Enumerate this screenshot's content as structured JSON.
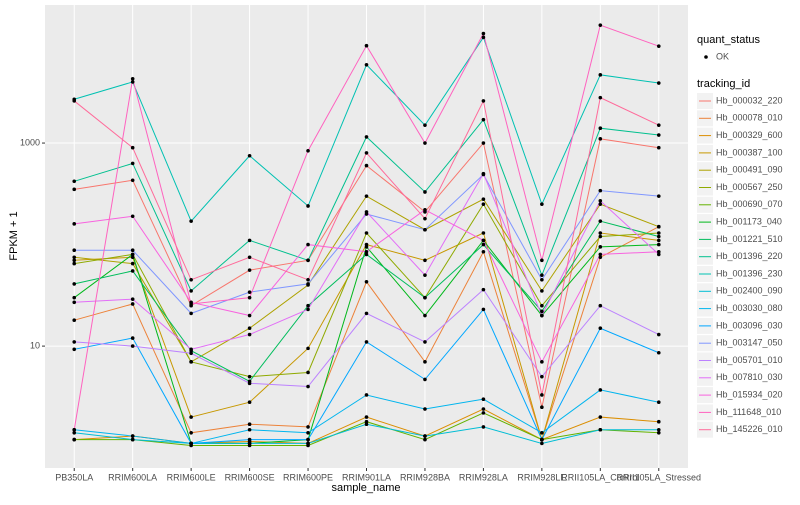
{
  "chart_data": {
    "type": "line",
    "x_label": "sample_name",
    "y_label": "FPKM + 1",
    "categories": [
      "PB350LA",
      "RRIM600LA",
      "RRIM600LE",
      "RRIM600SE",
      "RRIM600PE",
      "RRIM901LA",
      "RRIM928BA",
      "RRIM928LA",
      "RRIM928LE",
      "RRII105LA_Control",
      "RRII105LA_Stressed"
    ],
    "log_y": true,
    "grid": true,
    "ylim": [
      0.63,
      22900
    ],
    "yticks": [
      10,
      1000
    ],
    "status_legend": {
      "title": "quant_status",
      "labels": [
        "OK"
      ]
    },
    "legend_title": "tracking_id",
    "series": [
      {
        "name": "Hb_000032_220",
        "color": "#F8766D",
        "values": [
          350,
          430,
          25,
          56,
          70,
          600,
          210,
          1000,
          2.5,
          1100,
          900
        ]
      },
      {
        "name": "Hb_000078_010",
        "color": "#EC8239",
        "values": [
          18,
          26,
          1.4,
          1.7,
          1.6,
          43,
          7,
          85,
          1.2,
          75,
          150
        ]
      },
      {
        "name": "Hb_000329_600",
        "color": "#DB8E00",
        "values": [
          1.2,
          1.3,
          1.1,
          1.15,
          1.1,
          2.0,
          1.3,
          2.4,
          1.2,
          2.0,
          1.8
        ]
      },
      {
        "name": "Hb_000387_100",
        "color": "#C79800",
        "values": [
          70,
          75,
          2.0,
          2.8,
          9.5,
          100,
          70,
          130,
          1.2,
          130,
          110
        ]
      },
      {
        "name": "Hb_000491_090",
        "color": "#AEA200",
        "values": [
          75,
          65,
          7,
          15,
          40,
          300,
          140,
          280,
          35,
          250,
          150
        ]
      },
      {
        "name": "Hb_000567_250",
        "color": "#8FAA00",
        "values": [
          65,
          80,
          7,
          5,
          5.5,
          130,
          30,
          250,
          25,
          120,
          130
        ]
      },
      {
        "name": "Hb_000690_070",
        "color": "#64B200",
        "values": [
          1.2,
          1.2,
          1.05,
          1.05,
          1.05,
          1.8,
          1.2,
          2.2,
          1.2,
          1.5,
          1.4
        ]
      },
      {
        "name": "Hb_001173_040",
        "color": "#00B81B",
        "values": [
          30,
          80,
          1.1,
          1.1,
          1.2,
          95,
          20,
          110,
          20,
          95,
          100
        ]
      },
      {
        "name": "Hb_001221_510",
        "color": "#00BD5C",
        "values": [
          41,
          55,
          9,
          4.5,
          25,
          80,
          30,
          100,
          22,
          170,
          120
        ]
      },
      {
        "name": "Hb_001396_220",
        "color": "#00C08E",
        "values": [
          420,
          630,
          35,
          110,
          70,
          1150,
          330,
          1700,
          50,
          1400,
          1200
        ]
      },
      {
        "name": "Hb_001396_230",
        "color": "#00C1B2",
        "values": [
          2700,
          4000,
          170,
          750,
          240,
          5900,
          1500,
          11000,
          250,
          4700,
          3900
        ]
      },
      {
        "name": "Hb_002400_090",
        "color": "#00BDD4",
        "values": [
          1.4,
          1.2,
          1.1,
          1.1,
          1.1,
          1.7,
          1.3,
          1.6,
          1.1,
          1.5,
          1.5
        ]
      },
      {
        "name": "Hb_003030_080",
        "color": "#00B5EE",
        "values": [
          1.5,
          1.3,
          1.1,
          1.5,
          1.4,
          3.3,
          2.4,
          3.0,
          1.4,
          3.7,
          2.8
        ]
      },
      {
        "name": "Hb_003096_030",
        "color": "#00A7FF",
        "values": [
          9.3,
          12,
          1.1,
          1.2,
          1.2,
          11,
          4.7,
          23,
          1.2,
          15,
          8.6
        ]
      },
      {
        "name": "Hb_003147_050",
        "color": "#7F96FF",
        "values": [
          88,
          88,
          21,
          34,
          41,
          200,
          140,
          490,
          45,
          340,
          300
        ]
      },
      {
        "name": "Hb_005701_010",
        "color": "#BC81FF",
        "values": [
          11,
          10,
          8.5,
          4.3,
          4.0,
          21,
          11,
          36,
          5.0,
          25,
          13
        ]
      },
      {
        "name": "Hb_007810_030",
        "color": "#E26EF7",
        "values": [
          27,
          29,
          9.3,
          13,
          23,
          210,
          50,
          500,
          20,
          270,
          80
        ]
      },
      {
        "name": "Hb_015934_020",
        "color": "#F863DF",
        "values": [
          160,
          190,
          27,
          20,
          100,
          85,
          220,
          110,
          7,
          80,
          85
        ]
      },
      {
        "name": "Hb_111648_010",
        "color": "#FF62BF",
        "values": [
          1.5,
          4300,
          26,
          30,
          840,
          9100,
          1000,
          12000,
          70,
          14500,
          9000
        ]
      },
      {
        "name": "Hb_145226_010",
        "color": "#FF6A9A",
        "values": [
          2600,
          900,
          45,
          75,
          45,
          800,
          180,
          2600,
          3.3,
          2800,
          1500
        ]
      }
    ]
  }
}
